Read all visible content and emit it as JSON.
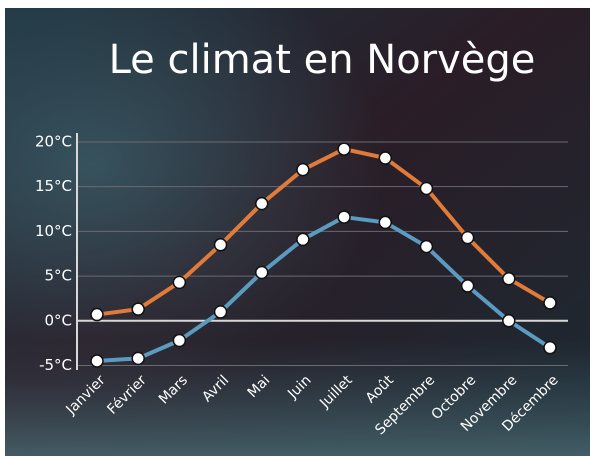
{
  "chart_data": {
    "type": "line",
    "title": "Le climat en Norvège",
    "categories": [
      "Janvier",
      "Février",
      "Mars",
      "Avril",
      "Mai",
      "Juin",
      "Juillet",
      "Août",
      "Septembre",
      "Octobre",
      "Novembre",
      "Décembre"
    ],
    "series": [
      {
        "color": "#e07b39",
        "values": [
          0.7,
          1.3,
          4.3,
          8.5,
          13.1,
          16.9,
          19.2,
          18.2,
          14.8,
          9.3,
          4.7,
          2.0
        ]
      },
      {
        "color": "#5b9bc0",
        "values": [
          -4.5,
          -4.2,
          -2.2,
          1.0,
          5.4,
          9.1,
          11.6,
          11.0,
          8.3,
          3.9,
          0,
          -3.0
        ]
      }
    ],
    "ylim": [
      -5.5,
      21
    ],
    "yticks": [
      {
        "value": -5,
        "label": "-5°C"
      },
      {
        "value": 0,
        "label": "0°C"
      },
      {
        "value": 5,
        "label": "5°C"
      },
      {
        "value": 10,
        "label": "10°C"
      },
      {
        "value": 15,
        "label": "15°C"
      },
      {
        "value": 20,
        "label": "20°C"
      }
    ],
    "grid": true
  }
}
